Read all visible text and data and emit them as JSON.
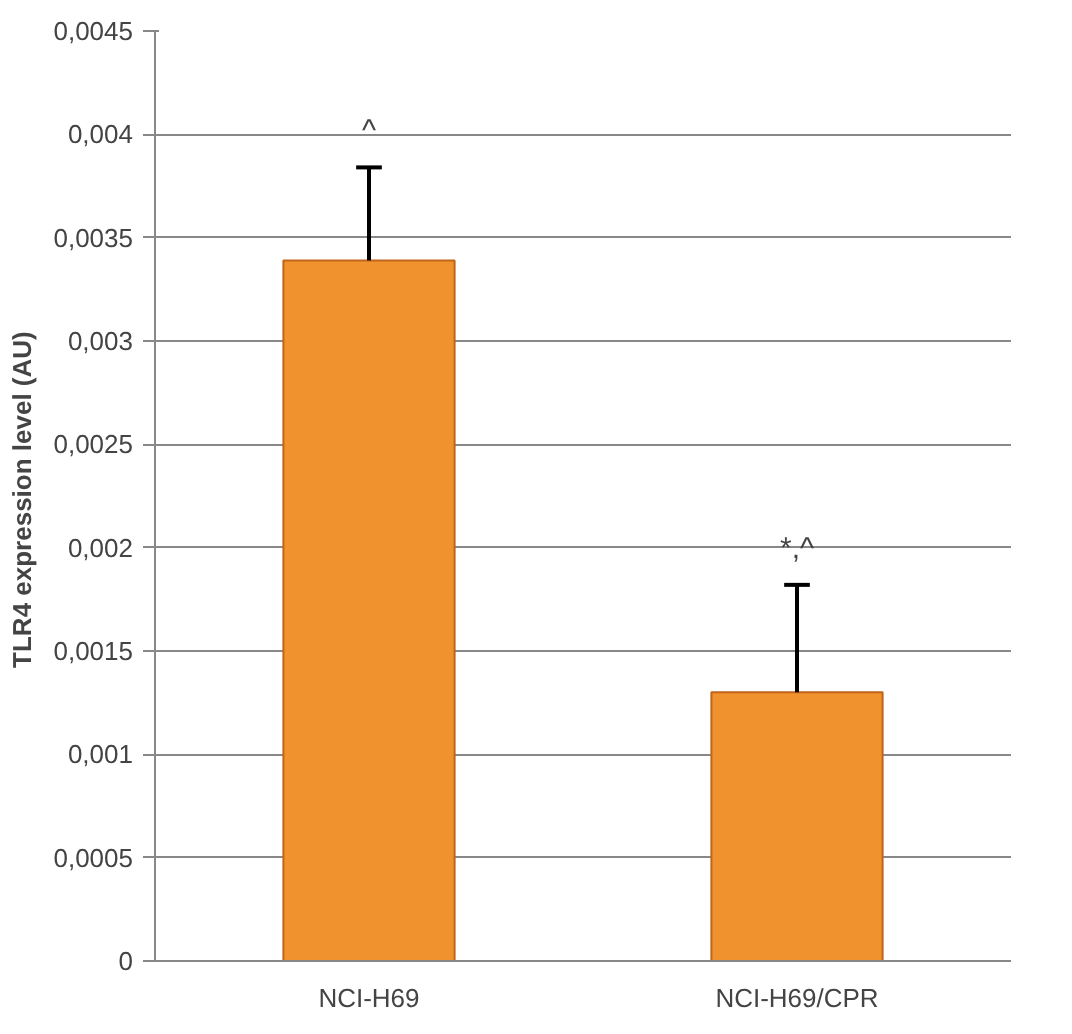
{
  "chart_data": {
    "type": "bar",
    "ylabel": "TLR4  expression level (AU)",
    "categories": [
      "NCI-H69",
      "NCI-H69/CPR"
    ],
    "values": [
      0.00339,
      0.0013
    ],
    "errors": [
      [
        0.00339,
        0.00384
      ],
      [
        0.0013,
        0.00182
      ]
    ],
    "color": "#f0922e",
    "ylim": [
      0,
      0.0045
    ],
    "yticks": [
      0,
      {
        "value": 0.0005,
        "label": "0,0005"
      },
      {
        "value": 0.001,
        "label": "0,001"
      },
      {
        "value": 0.0015,
        "label": "0,0015"
      },
      {
        "value": 0.002,
        "label": "0,002"
      },
      {
        "value": 0.0025,
        "label": "0,0025"
      },
      {
        "value": 0.003,
        "label": "0,003"
      },
      {
        "value": 0.0035,
        "label": "0,0035"
      },
      {
        "value": 0.004,
        "label": "0,004"
      },
      {
        "value": 0.0045,
        "label": "0,0045"
      }
    ],
    "grid": "y",
    "annotations": [
      "^",
      "*,^"
    ]
  }
}
